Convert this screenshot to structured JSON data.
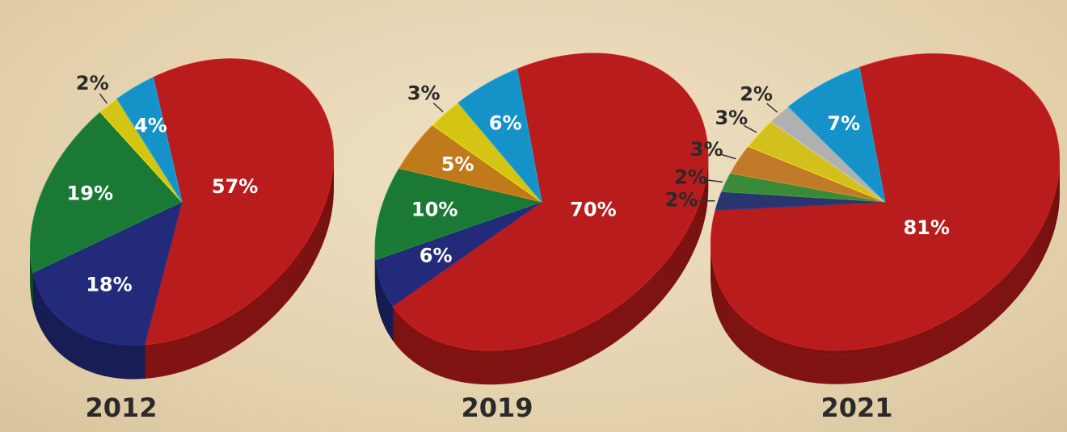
{
  "chart_data": [
    {
      "type": "pie",
      "title": "2012",
      "values": [
        57,
        18,
        19,
        2,
        4
      ],
      "value_labels": [
        "57%",
        "18%",
        "19%",
        "2%",
        "4%"
      ],
      "colors": [
        "#b81c1c",
        "#232a7a",
        "#1a7a35",
        "#d4c414",
        "#1592c8"
      ]
    },
    {
      "type": "pie",
      "title": "2019",
      "values": [
        70,
        6,
        10,
        5,
        3,
        6
      ],
      "value_labels": [
        "70%",
        "6%",
        "10%",
        "5%",
        "3%",
        "6%"
      ],
      "colors": [
        "#b81c1c",
        "#232a7a",
        "#1a7a35",
        "#c07a1c",
        "#d4c414",
        "#1592c8"
      ]
    },
    {
      "type": "pie",
      "title": "2021",
      "values": [
        81,
        2,
        2,
        3,
        3,
        2,
        7
      ],
      "value_labels": [
        "81%",
        "2%",
        "2%",
        "3%",
        "3%",
        "2%",
        "7%"
      ],
      "colors": [
        "#b81c1c",
        "#2a3570",
        "#3a8a3a",
        "#c07a2a",
        "#d4c01c",
        "#b0b0b0",
        "#1592c8"
      ]
    }
  ]
}
